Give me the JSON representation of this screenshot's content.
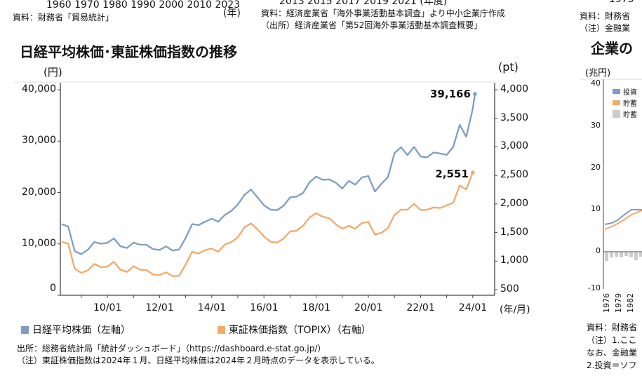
{
  "top_strip": {
    "left_axis_years": "1960 1970 1980 1990 2000 2010   2023",
    "left_unit": "(年)",
    "left_source": "資料：財務省「貿易統計」",
    "mid_axis_years": "2013        2015        2017        2019        2021 (年度)",
    "mid_source": "資料：経済産業省「海外事業活動基本調査」より中小企業庁作成",
    "mid_note": "（出所）経済産業省「第52回海外事業活動基本調査概要」",
    "right_axis_year": "1975",
    "right_source": "資料：財務省",
    "right_note": "（注）金融業"
  },
  "chart_data": {
    "type": "line",
    "title": "日経平均株価･東証株価指数の推移",
    "left_unit": "(円)",
    "right_unit": "(pt)",
    "xlabel": "(年/月)",
    "x_ticks": [
      "10/01",
      "12/01",
      "14/01",
      "16/01",
      "18/01",
      "20/01",
      "22/01",
      "24/01"
    ],
    "y_left_ticks": [
      "40,000",
      "30,000",
      "20,000",
      "10,000",
      "0"
    ],
    "y_left_range": [
      0,
      40000
    ],
    "y_right_ticks": [
      "4,000",
      "3,500",
      "3,000",
      "2,500",
      "2,000",
      "1,500",
      "1,000",
      "500"
    ],
    "y_right_range": [
      500,
      4000
    ],
    "grid": false,
    "legend_position": "bottom",
    "x": [
      "2008/04",
      "2008/07",
      "2008/10",
      "2009/01",
      "2009/04",
      "2009/07",
      "2009/10",
      "2010/01",
      "2010/04",
      "2010/07",
      "2010/10",
      "2011/01",
      "2011/04",
      "2011/07",
      "2011/10",
      "2012/01",
      "2012/04",
      "2012/07",
      "2012/10",
      "2013/01",
      "2013/04",
      "2013/07",
      "2013/10",
      "2014/01",
      "2014/04",
      "2014/07",
      "2014/10",
      "2015/01",
      "2015/04",
      "2015/07",
      "2015/10",
      "2016/01",
      "2016/04",
      "2016/07",
      "2016/10",
      "2017/01",
      "2017/04",
      "2017/07",
      "2017/10",
      "2018/01",
      "2018/04",
      "2018/07",
      "2018/10",
      "2019/01",
      "2019/04",
      "2019/07",
      "2019/10",
      "2020/01",
      "2020/04",
      "2020/07",
      "2020/10",
      "2021/01",
      "2021/04",
      "2021/07",
      "2021/10",
      "2022/01",
      "2022/04",
      "2022/07",
      "2022/10",
      "2023/01",
      "2023/04",
      "2023/07",
      "2023/10",
      "2024/01",
      "2024/02"
    ],
    "series": [
      {
        "name": "日経平均株価（左軸）",
        "axis": "left",
        "color": "#7f9dc4",
        "values": [
          13850,
          13376,
          8577,
          7994,
          8828,
          10356,
          10034,
          10198,
          11057,
          9537,
          9202,
          10237,
          9849,
          9833,
          8988,
          8802,
          9520,
          8695,
          8928,
          11138,
          13860,
          13668,
          14327,
          14914,
          14304,
          15620,
          16413,
          17674,
          19520,
          20585,
          19083,
          17518,
          16666,
          16569,
          17425,
          19041,
          19196,
          19925,
          22011,
          23098,
          22467,
          22553,
          21920,
          20773,
          22258,
          21521,
          22927,
          23205,
          20193,
          21710,
          22977,
          27663,
          28812,
          27283,
          28892,
          27001,
          26847,
          27801,
          27587,
          27327,
          28856,
          33172,
          30858,
          36286,
          39166
        ],
        "end_label": "39,166"
      },
      {
        "name": "東証株価指数（TOPIX）（右軸）",
        "axis": "right",
        "color": "#f2a96a",
        "values": [
          1339,
          1304,
          867,
          794,
          837,
          950,
          894,
          901,
          987,
          850,
          810,
          910,
          851,
          841,
          764,
          755,
          804,
          736,
          742,
          940,
          1165,
          1131,
          1194,
          1220,
          1163,
          1289,
          1333,
          1415,
          1592,
          1659,
          1558,
          1432,
          1340,
          1322,
          1393,
          1521,
          1531,
          1618,
          1765,
          1836,
          1777,
          1753,
          1646,
          1567,
          1617,
          1565,
          1667,
          1684,
          1464,
          1496,
          1579,
          1808,
          1898,
          1901,
          2001,
          1895,
          1899,
          1940,
          1929,
          1975,
          2021,
          2323,
          2254,
          2551,
          null
        ],
        "end_label": "2,551"
      }
    ]
  },
  "source": "出所：総務省統計局「統計ダッシュボード」（https://dashboard.e-stat.go.jp/）",
  "note": "（注）東証株価指数は2024年１月、日経平均株価は2024年２月時点のデータを表示している。",
  "right_chart": {
    "title": "企業の",
    "unit": "(兆円)",
    "y_ticks": [
      "40",
      "30",
      "20",
      "10",
      "0",
      "-10"
    ],
    "legend": [
      "投資",
      "貯蓄",
      "貯蓄"
    ],
    "x_ticks": [
      "1976",
      "1979",
      "1982"
    ],
    "notes": [
      "資料：財務省",
      "（注）1.ここ",
      "なお、金融業",
      "2.投資＝ソフ"
    ]
  }
}
